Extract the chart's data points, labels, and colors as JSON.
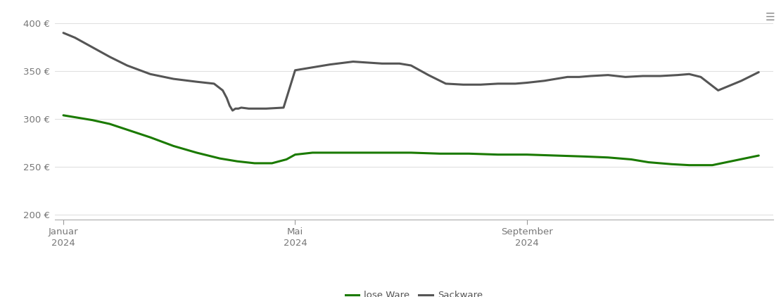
{
  "background_color": "#ffffff",
  "grid_color": "#e0e0e0",
  "ylim": [
    195,
    415
  ],
  "yticks": [
    200,
    250,
    300,
    350,
    400
  ],
  "ytick_labels": [
    "200 €",
    "250 €",
    "300 €",
    "350 €",
    "400 €"
  ],
  "xtick_labels": [
    "Januar\n2024",
    "Mai\n2024",
    "September\n2024"
  ],
  "xtick_positions": [
    0,
    4,
    8
  ],
  "legend_labels": [
    "lose Ware",
    "Sackware"
  ],
  "lose_color": "#1a7a00",
  "sack_color": "#555555",
  "lose_ware_x": [
    0,
    0.2,
    0.5,
    0.8,
    1.1,
    1.5,
    1.9,
    2.3,
    2.7,
    3.0,
    3.3,
    3.6,
    3.85,
    4.0,
    4.3,
    4.6,
    5.0,
    5.5,
    6.0,
    6.5,
    7.0,
    7.5,
    8.0,
    8.5,
    9.0,
    9.4,
    9.8,
    10.1,
    10.5,
    10.8,
    11.2,
    11.6,
    12.0
  ],
  "lose_ware_y": [
    304,
    302,
    299,
    295,
    289,
    281,
    272,
    265,
    259,
    256,
    254,
    254,
    258,
    263,
    265,
    265,
    265,
    265,
    265,
    264,
    264,
    263,
    263,
    262,
    261,
    260,
    258,
    255,
    253,
    252,
    252,
    257,
    262
  ],
  "sackware_x": [
    0,
    0.2,
    0.5,
    0.8,
    1.1,
    1.5,
    1.9,
    2.3,
    2.6,
    2.75,
    2.82,
    2.87,
    2.92,
    2.97,
    3.02,
    3.07,
    3.2,
    3.5,
    3.8,
    4.0,
    4.3,
    4.6,
    5.0,
    5.5,
    5.8,
    6.0,
    6.3,
    6.6,
    6.9,
    7.2,
    7.5,
    7.8,
    8.0,
    8.3,
    8.5,
    8.7,
    8.9,
    9.1,
    9.4,
    9.7,
    10.0,
    10.3,
    10.6,
    10.8,
    11.0,
    11.3,
    11.7,
    12.0
  ],
  "sackware_y": [
    390,
    385,
    375,
    365,
    356,
    347,
    342,
    339,
    337,
    330,
    322,
    314,
    309,
    311,
    311,
    312,
    311,
    311,
    312,
    351,
    354,
    357,
    360,
    358,
    358,
    356,
    346,
    337,
    336,
    336,
    337,
    337,
    338,
    340,
    342,
    344,
    344,
    345,
    346,
    344,
    345,
    345,
    346,
    347,
    344,
    330,
    340,
    349
  ],
  "line_width": 2.2
}
